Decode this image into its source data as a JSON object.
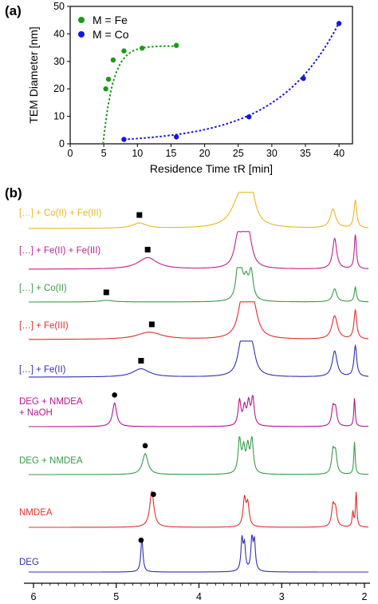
{
  "chart_data": [
    {
      "panel": "(a)",
      "type": "scatter",
      "xlabel": "Residence Time  τR  [min]",
      "ylabel": "TEM Diameter [nm]",
      "xlim": [
        0,
        42
      ],
      "ylim": [
        0,
        50
      ],
      "xticks": [
        "0",
        "5",
        "10",
        "15",
        "20",
        "25",
        "30",
        "35",
        "40"
      ],
      "yticks": [
        "0",
        "10",
        "20",
        "30",
        "40",
        "50"
      ],
      "legend_position": "top-left",
      "series": [
        {
          "name": "M = Fe",
          "color": "#1a9a1a",
          "x": [
            5.3,
            5.7,
            6.4,
            8.0,
            10.7,
            15.8
          ],
          "y": [
            20.0,
            23.5,
            30.5,
            33.8,
            34.8,
            35.8
          ]
        },
        {
          "name": "M = Co",
          "color": "#1414e6",
          "x": [
            8.0,
            15.8,
            26.6,
            34.7,
            40.0
          ],
          "y": [
            1.6,
            2.5,
            9.8,
            23.8,
            43.8
          ]
        }
      ]
    },
    {
      "panel": "(b)",
      "type": "line",
      "x_reversed": true,
      "xlim": [
        6,
        2
      ],
      "xticks": [
        "6",
        "5",
        "4",
        "3",
        "2"
      ],
      "traces": [
        {
          "label": "[…] + Co(II) + Fe(III)",
          "color": "#e8b820",
          "marker": "square",
          "marker_ppm": 4.72,
          "peaks": [
            [
              4.72,
              0.1,
              0.15
            ],
            [
              3.51,
              0.12,
              0.75
            ],
            [
              3.44,
              0.06,
              0.55
            ],
            [
              3.37,
              0.06,
              0.78
            ],
            [
              2.38,
              0.04,
              0.55
            ],
            [
              2.11,
              0.02,
              0.8
            ]
          ]
        },
        {
          "label": "[…] + Fe(II) + Fe(III)",
          "color": "#c0208c",
          "marker": "square",
          "marker_ppm": 4.62,
          "peaks": [
            [
              4.62,
              0.14,
              0.32
            ],
            [
              3.53,
              0.05,
              0.8
            ],
            [
              3.46,
              0.04,
              0.55
            ],
            [
              3.4,
              0.05,
              0.85
            ],
            [
              2.36,
              0.03,
              0.85
            ],
            [
              2.11,
              0.015,
              0.95
            ]
          ]
        },
        {
          "label": "[…] + Co(II)",
          "color": "#3a9a4a",
          "marker": "square",
          "marker_ppm": 5.12,
          "peaks": [
            [
              5.12,
              0.1,
              0.05
            ],
            [
              3.53,
              0.03,
              0.9
            ],
            [
              3.49,
              0.03,
              0.7
            ],
            [
              3.43,
              0.03,
              0.55
            ],
            [
              3.37,
              0.03,
              0.88
            ],
            [
              2.36,
              0.03,
              0.4
            ],
            [
              2.11,
              0.015,
              0.45
            ]
          ]
        },
        {
          "label": "[…] + Fe(III)",
          "color": "#dd3030",
          "marker": "square",
          "marker_ppm": 4.57,
          "peaks": [
            [
              4.6,
              0.18,
              0.2
            ],
            [
              3.48,
              0.06,
              0.9
            ],
            [
              3.41,
              0.05,
              0.7
            ],
            [
              3.34,
              0.06,
              0.75
            ],
            [
              2.36,
              0.04,
              0.65
            ],
            [
              2.11,
              0.02,
              0.8
            ]
          ]
        },
        {
          "label": "[…] + Fe(II)",
          "color": "#3030b0",
          "marker": "square",
          "marker_ppm": 4.7,
          "peaks": [
            [
              4.7,
              0.12,
              0.24
            ],
            [
              3.49,
              0.05,
              0.85
            ],
            [
              3.43,
              0.04,
              0.6
            ],
            [
              3.36,
              0.05,
              0.8
            ],
            [
              2.36,
              0.035,
              0.75
            ],
            [
              2.11,
              0.02,
              0.9
            ]
          ]
        },
        {
          "label": "DEG + NMDEA + NaOH",
          "color": "#b01890",
          "marker": "circle",
          "marker_ppm": 5.02,
          "peaks": [
            [
              5.02,
              0.03,
              0.8
            ],
            [
              3.51,
              0.02,
              0.85
            ],
            [
              3.45,
              0.02,
              0.6
            ],
            [
              3.4,
              0.02,
              0.75
            ],
            [
              3.35,
              0.02,
              0.95
            ],
            [
              2.38,
              0.02,
              0.6
            ],
            [
              2.35,
              0.02,
              0.55
            ],
            [
              2.12,
              0.01,
              0.95
            ]
          ]
        },
        {
          "label": "DEG + NMDEA",
          "color": "#3a9a4a",
          "marker": "circle",
          "marker_ppm": 4.65,
          "peaks": [
            [
              4.65,
              0.04,
              0.58
            ],
            [
              3.51,
              0.02,
              0.95
            ],
            [
              3.46,
              0.02,
              0.65
            ],
            [
              3.41,
              0.02,
              0.7
            ],
            [
              3.36,
              0.02,
              0.95
            ],
            [
              2.38,
              0.02,
              0.6
            ],
            [
              2.35,
              0.02,
              0.55
            ],
            [
              2.12,
              0.01,
              0.9
            ]
          ]
        },
        {
          "label": "NMDEA",
          "color": "#dd3030",
          "marker": "circle",
          "marker_ppm": 4.55,
          "peaks": [
            [
              4.57,
              0.03,
              0.98
            ],
            [
              3.45,
              0.02,
              0.75
            ],
            [
              3.41,
              0.02,
              0.6
            ],
            [
              2.38,
              0.02,
              0.55
            ],
            [
              2.35,
              0.02,
              0.45
            ],
            [
              2.14,
              0.01,
              0.4
            ],
            [
              2.1,
              0.01,
              0.95
            ]
          ]
        },
        {
          "label": "DEG",
          "color": "#3030b0",
          "marker": "circle",
          "marker_ppm": 4.7,
          "peaks": [
            [
              4.69,
              0.015,
              0.98
            ],
            [
              3.48,
              0.015,
              0.88
            ],
            [
              3.45,
              0.015,
              0.7
            ],
            [
              3.36,
              0.015,
              0.9
            ],
            [
              3.33,
              0.015,
              0.8
            ]
          ]
        }
      ]
    }
  ]
}
